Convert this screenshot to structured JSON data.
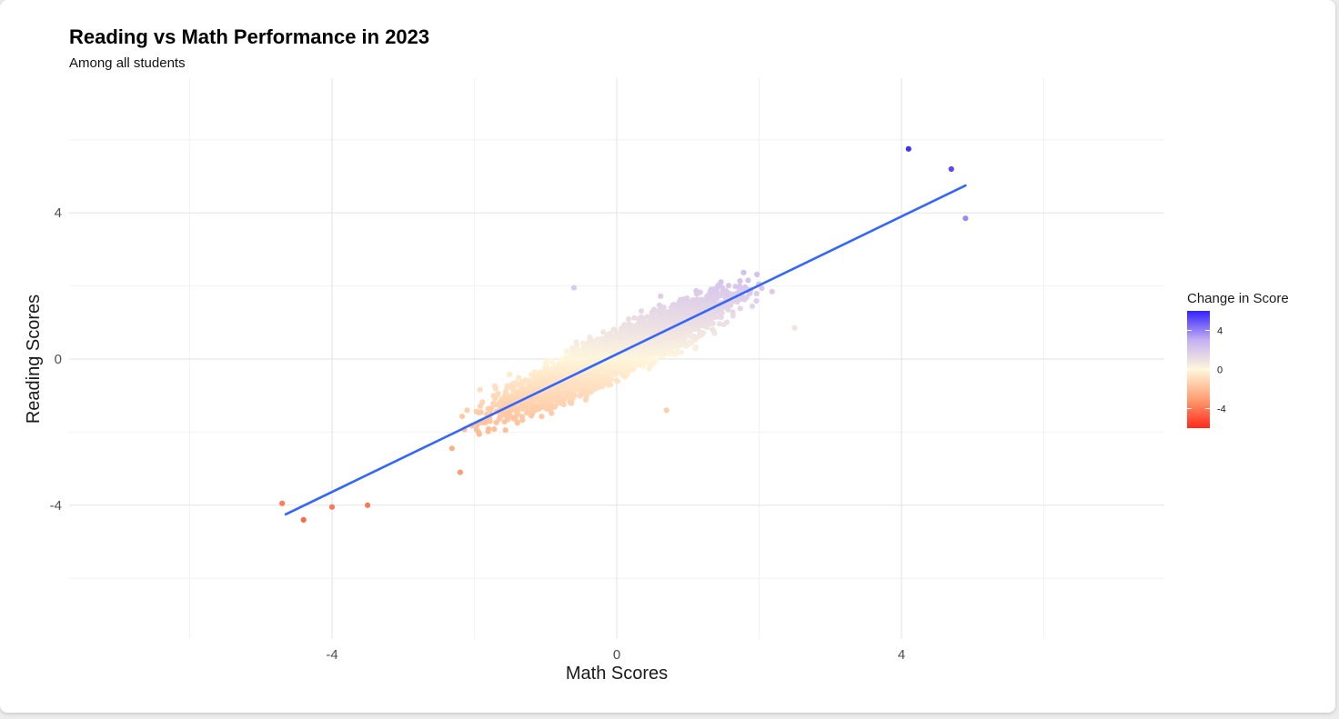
{
  "chart_data": {
    "type": "scatter",
    "title": "Reading vs Math Performance in 2023",
    "subtitle": "Among all students",
    "xlabel": "Math Scores",
    "ylabel": "Reading Scores",
    "xlim": [
      -7.4,
      7.8
    ],
    "ylim": [
      -7.7,
      7.7
    ],
    "x_ticks": [
      -4,
      0,
      4
    ],
    "x_tick_labels": [
      "-4",
      "0",
      "4"
    ],
    "y_ticks": [
      -4,
      0,
      4
    ],
    "y_tick_labels": [
      "-4",
      "0",
      "4"
    ],
    "grid": true,
    "point_count": 4000,
    "trend_line": {
      "type": "linear",
      "color": "#3366ff",
      "from": [
        -4.65,
        -4.25
      ],
      "to": [
        4.9,
        4.75
      ]
    },
    "color_scale": {
      "name": "Change in Score",
      "low": "#ff2a1a",
      "low_mid": "#ff9f73",
      "mid": "#fff7dc",
      "high_mid": "#c5b0f2",
      "high": "#3322ff",
      "domain": [
        -6,
        6
      ],
      "legend_ticks": [
        4,
        0,
        -4
      ],
      "legend_tick_labels": [
        "4",
        "0",
        "-4"
      ],
      "legend_position": "right"
    },
    "sample_points": [
      {
        "x": -4.7,
        "y": -3.95
      },
      {
        "x": -4.4,
        "y": -4.4
      },
      {
        "x": -4.0,
        "y": -4.05
      },
      {
        "x": -3.5,
        "y": -4.0
      },
      {
        "x": -2.2,
        "y": -3.1
      },
      {
        "x": -0.6,
        "y": 1.95
      },
      {
        "x": 0.7,
        "y": -1.4
      },
      {
        "x": 2.5,
        "y": 0.85
      },
      {
        "x": 4.1,
        "y": 5.75
      },
      {
        "x": 4.7,
        "y": 5.2
      },
      {
        "x": 4.9,
        "y": 3.85
      }
    ]
  }
}
